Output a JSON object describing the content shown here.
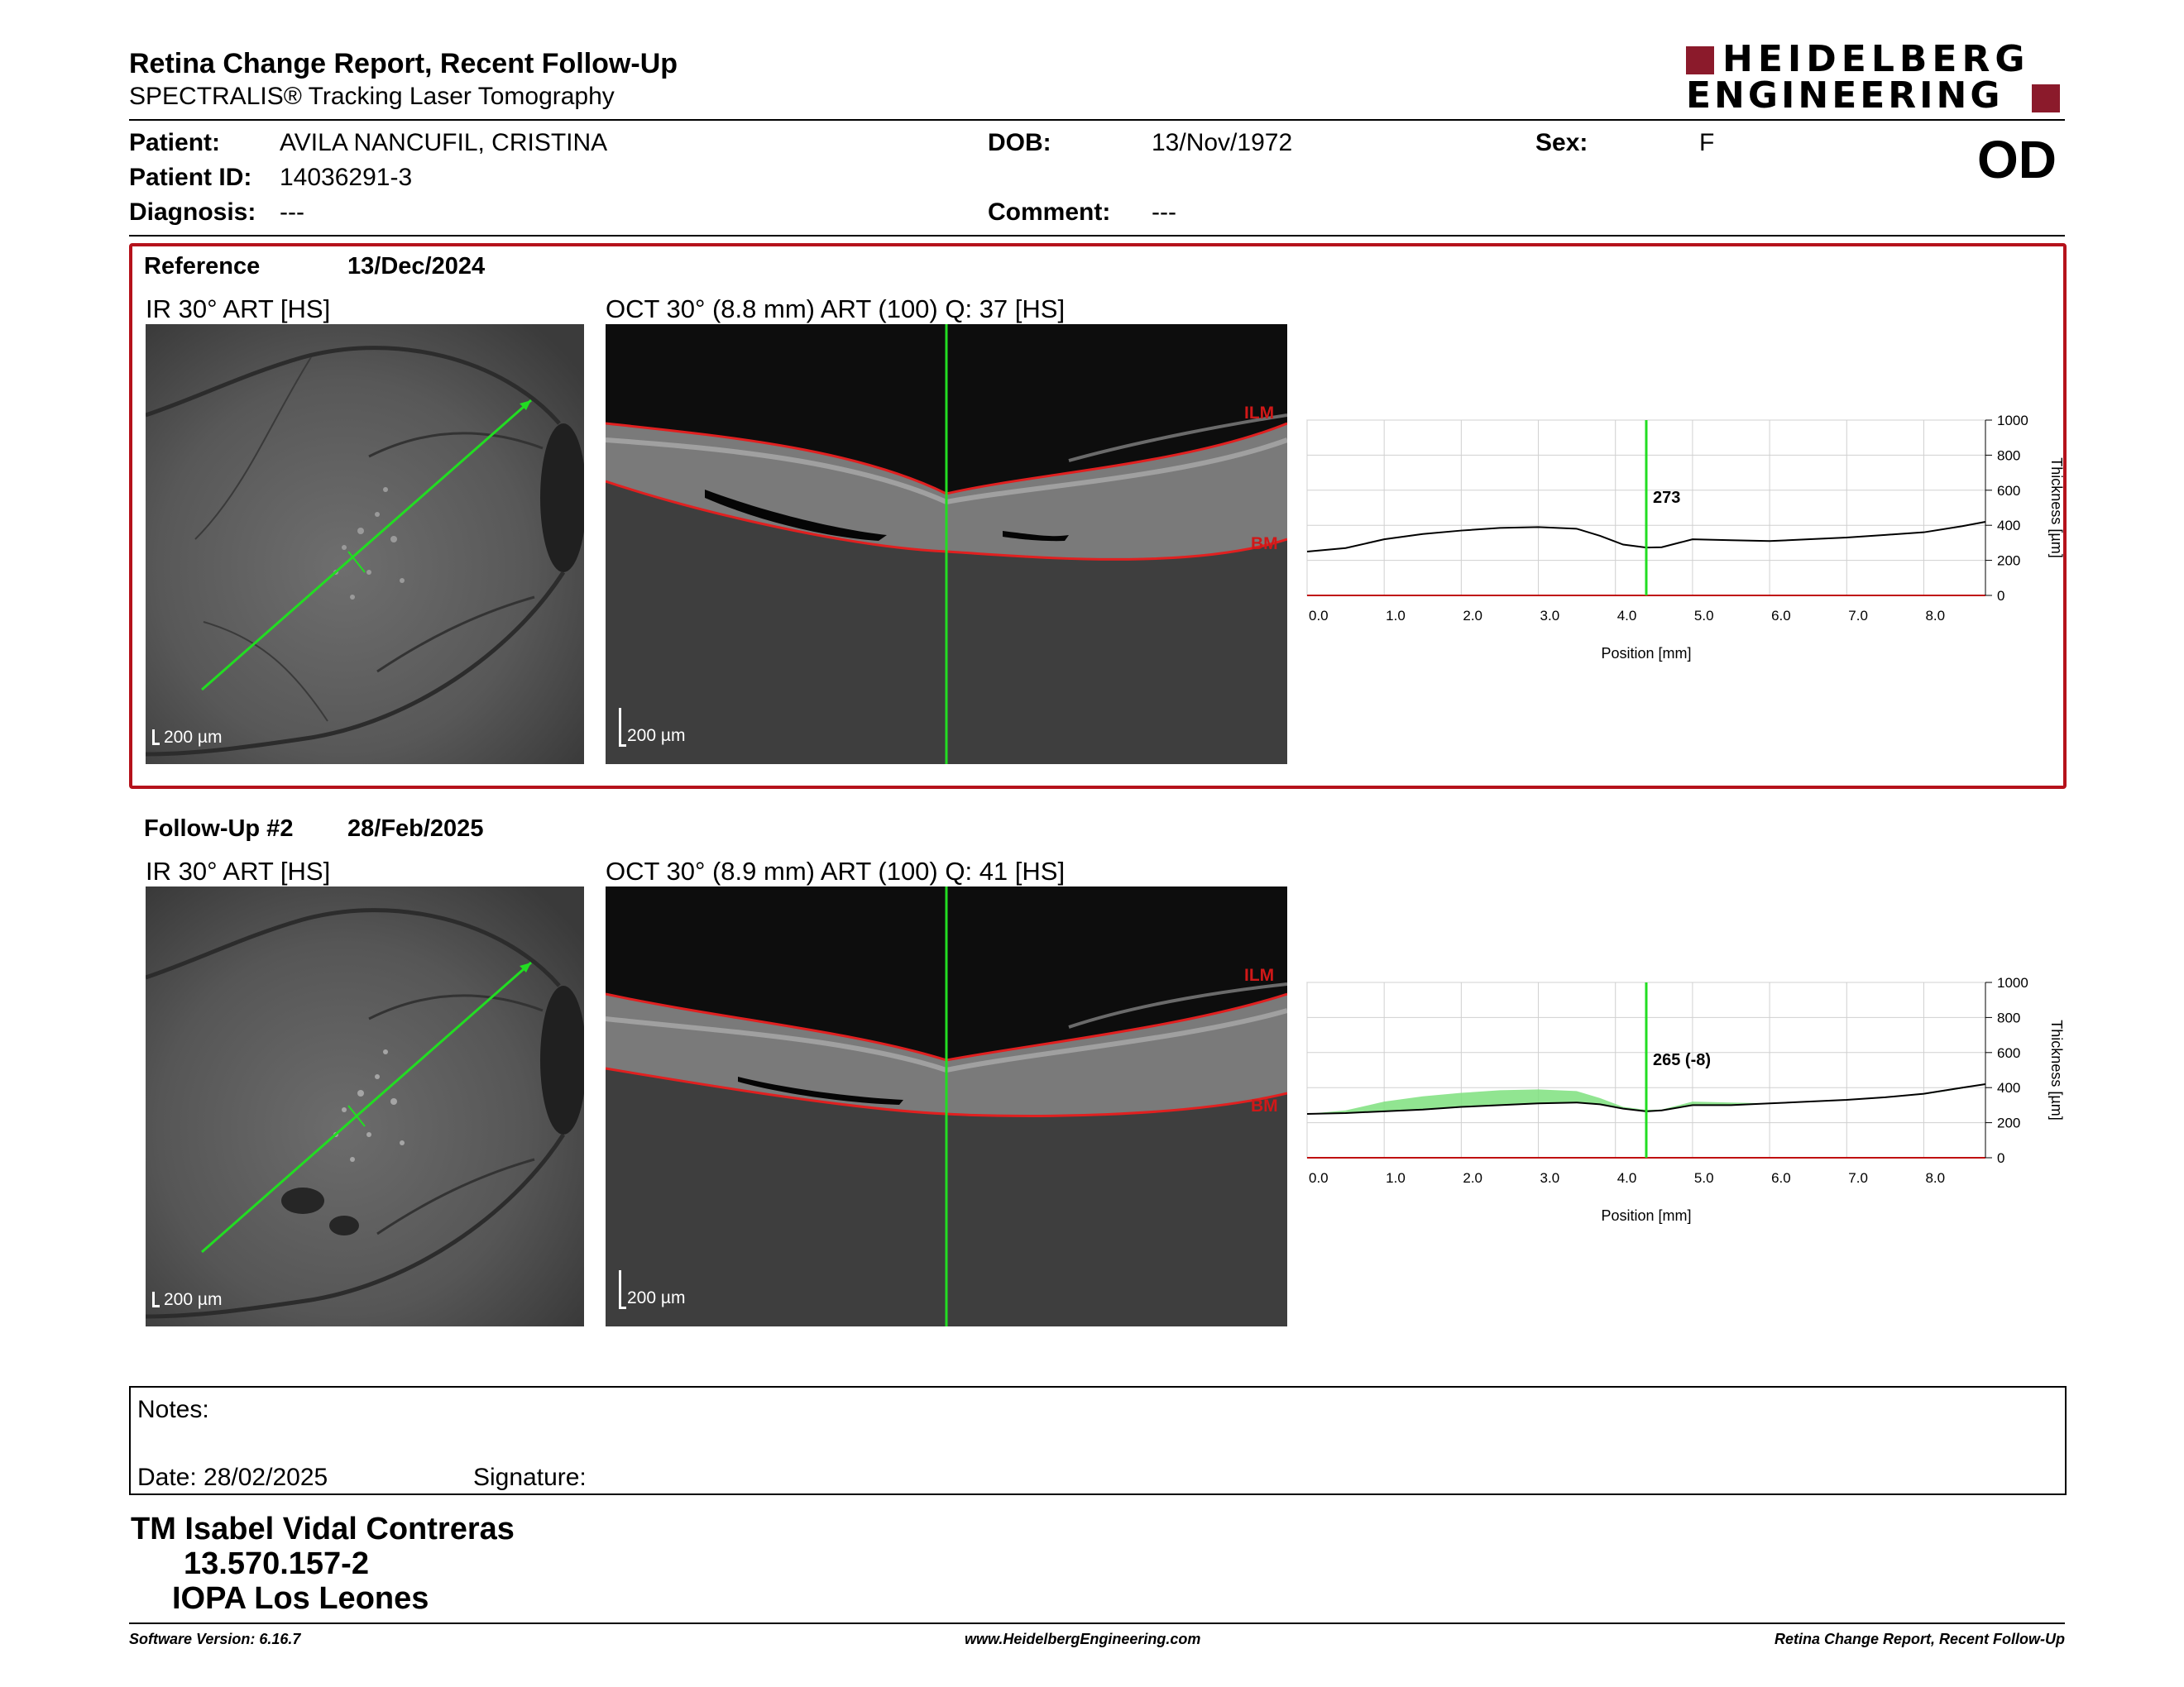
{
  "header": {
    "title": "Retina Change Report, Recent Follow-Up",
    "subtitle": "SPECTRALIS® Tracking Laser Tomography",
    "brand_line1": "HEIDELBERG",
    "brand_line2": "ENGINEERING",
    "eye": "OD"
  },
  "patient": {
    "patient_label": "Patient:",
    "patient_value": "AVILA NANCUFIL, CRISTINA",
    "dob_label": "DOB:",
    "dob_value": "13/Nov/1972",
    "sex_label": "Sex:",
    "sex_value": "F",
    "id_label": "Patient ID:",
    "id_value": "14036291-3",
    "diagnosis_label": "Diagnosis:",
    "diagnosis_value": "---",
    "comment_label": "Comment:",
    "comment_value": "---"
  },
  "reference": {
    "label": "Reference",
    "date": "13/Dec/2024",
    "ir_caption": "IR 30° ART [HS]",
    "oct_caption": "OCT 30° (8.8 mm) ART (100) Q: 37 [HS]",
    "scale_ir": "200 µm",
    "scale_oct": "200 µm",
    "ilm": "ILM",
    "bm": "BM"
  },
  "followup": {
    "label": "Follow-Up #2",
    "date": "28/Feb/2025",
    "ir_caption": "IR 30° ART [HS]",
    "oct_caption": "OCT 30° (8.9 mm) ART (100) Q: 41 [HS]",
    "scale_ir": "200 µm",
    "scale_oct": "200 µm",
    "ilm": "ILM",
    "bm": "BM"
  },
  "chart_data": [
    {
      "type": "line",
      "xlabel": "Position [mm]",
      "ylabel": "Thickness [µm]",
      "xlim": [
        0,
        8.8
      ],
      "ylim": [
        0,
        1000
      ],
      "xticks": [
        "0.0",
        "1.0",
        "2.0",
        "3.0",
        "4.0",
        "5.0",
        "6.0",
        "7.0",
        "8.0"
      ],
      "yticks": [
        "0",
        "200",
        "400",
        "600",
        "800",
        "1000"
      ],
      "cursor_x": 4.4,
      "cursor_label": "273",
      "series": [
        {
          "x": [
            0,
            0.5,
            1,
            1.5,
            2,
            2.5,
            3,
            3.5,
            3.8,
            4.1,
            4.4,
            4.6,
            5,
            5.5,
            6,
            6.5,
            7,
            7.5,
            8,
            8.5,
            8.8
          ],
          "values": [
            250,
            270,
            320,
            350,
            370,
            385,
            390,
            380,
            340,
            290,
            273,
            275,
            320,
            315,
            310,
            320,
            330,
            345,
            360,
            395,
            420
          ]
        }
      ]
    },
    {
      "type": "area",
      "xlabel": "Position [mm]",
      "ylabel": "Thickness [µm]",
      "xlim": [
        0,
        8.8
      ],
      "ylim": [
        0,
        1000
      ],
      "xticks": [
        "0.0",
        "1.0",
        "2.0",
        "3.0",
        "4.0",
        "5.0",
        "6.0",
        "7.0",
        "8.0"
      ],
      "yticks": [
        "0",
        "200",
        "400",
        "600",
        "800",
        "1000"
      ],
      "cursor_x": 4.4,
      "cursor_label": "265 (-8)",
      "series": [
        {
          "x": [
            0,
            0.5,
            1,
            1.5,
            2,
            2.5,
            3,
            3.5,
            3.8,
            4.1,
            4.4,
            4.6,
            5,
            5.5,
            6,
            6.5,
            7,
            7.5,
            8,
            8.5,
            8.8
          ],
          "values": [
            250,
            255,
            265,
            275,
            290,
            300,
            310,
            315,
            305,
            280,
            265,
            270,
            300,
            300,
            310,
            320,
            330,
            345,
            365,
            400,
            420
          ]
        }
      ],
      "change_fill": "#7ee07e"
    }
  ],
  "notes": {
    "label": "Notes:",
    "date": "Date: 28/02/2025",
    "signature": "Signature:"
  },
  "signer": {
    "name": "TM Isabel Vidal Contreras",
    "rut": "13.570.157-2",
    "org": "IOPA Los Leones"
  },
  "footer": {
    "software": "Software Version: 6.16.7",
    "url": "www.HeidelbergEngineering.com",
    "report": "Retina Change Report, Recent Follow-Up"
  },
  "colors": {
    "accent_red": "#b5121b",
    "scan_green": "#22dd22"
  }
}
